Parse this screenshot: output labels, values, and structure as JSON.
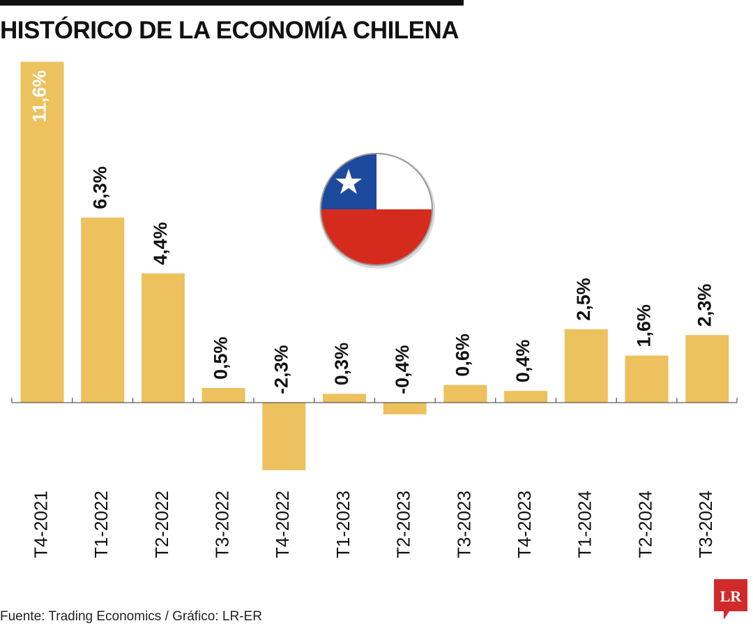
{
  "title": "HISTÓRICO DE LA ECONOMÍA CHILENA",
  "source": "Fuente: Trading Economics / Gráfico: LR-ER",
  "logo_text": "LR",
  "colors": {
    "bar": "#ECC15E",
    "text": "#111111",
    "value_label_inside": "#ffffff",
    "axis": "#333333",
    "logo": "#D12A2A",
    "flag_blue": "#1E4A9E",
    "flag_white": "#FFFFFF",
    "flag_red": "#D52B1E"
  },
  "icons": {
    "flag": "chile-flag-icon",
    "logo": "lr-logo-icon"
  },
  "chart_data": {
    "type": "bar",
    "title": "HISTÓRICO DE LA ECONOMÍA CHILENA",
    "xlabel": "",
    "ylabel": "",
    "ylim": [
      -3,
      12
    ],
    "grid": false,
    "legend": "none",
    "categories": [
      "T4-2021",
      "T1-2022",
      "T2-2022",
      "T3-2022",
      "T4-2022",
      "T1-2023",
      "T2-2023",
      "T3-2023",
      "T4-2023",
      "T1-2024",
      "T2-2024",
      "T3-2024"
    ],
    "values": [
      11.6,
      6.3,
      4.4,
      0.5,
      -2.3,
      0.3,
      -0.4,
      0.6,
      0.4,
      2.5,
      1.6,
      2.3
    ],
    "value_labels": [
      "11,6%",
      "6,3%",
      "4,4%",
      "0,5%",
      "-2,3%",
      "0,3%",
      "-0,4%",
      "0,6%",
      "0,4%",
      "2,5%",
      "1,6%",
      "2,3%"
    ]
  }
}
